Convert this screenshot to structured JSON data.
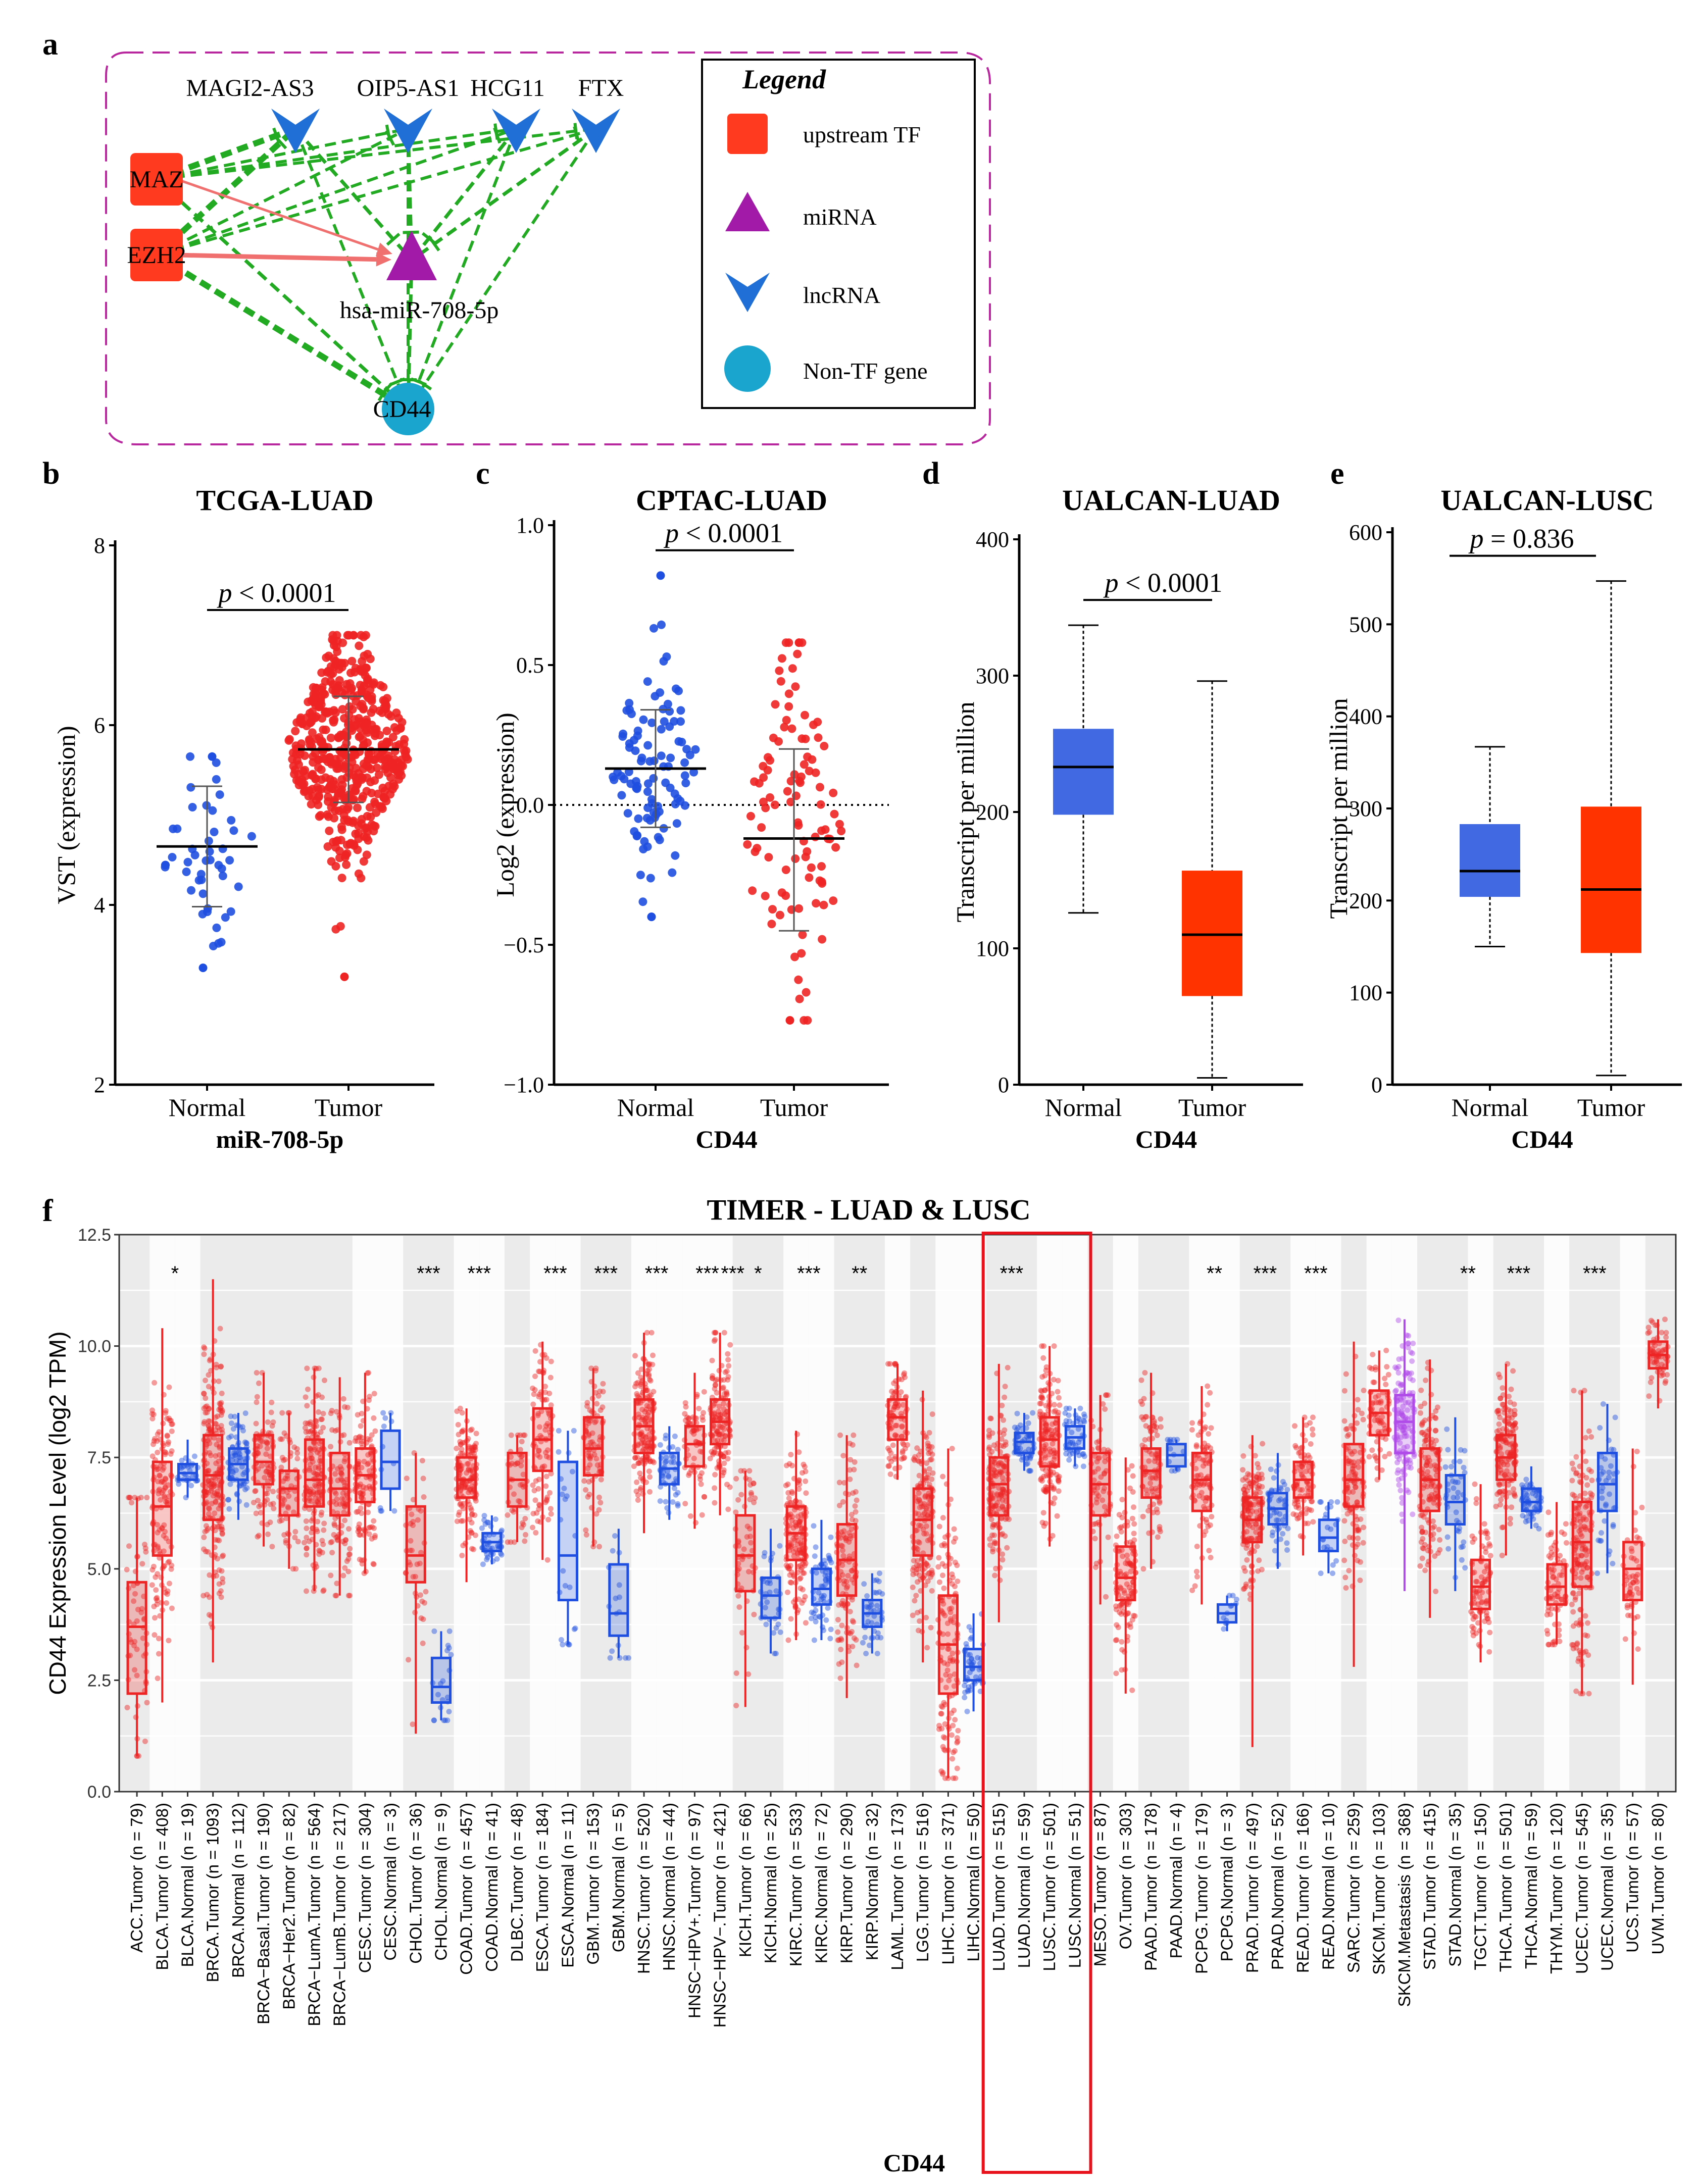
{
  "panel_labels": {
    "a": "a",
    "b": "b",
    "c": "c",
    "d": "d",
    "e": "e",
    "f": "f"
  },
  "colors": {
    "normal_blue": "#1f4fe0",
    "tumor_red": "#ee2323",
    "box_blue": "#4169e1",
    "box_red": "#ff3300",
    "tf_orange": "#ff3a1e",
    "mirna_purple": "#a21ba8",
    "lncrna_blue": "#1f6fd6",
    "gene_cyan": "#1aa5cf",
    "edge_green": "#22aa22",
    "edge_pink": "#f07070",
    "frame_magenta": "#b8279e",
    "metastasis_purple": "#b04ae8",
    "highlight_red": "#e8121c"
  },
  "network": {
    "nodes": {
      "tf": [
        "MAZ",
        "EZH2"
      ],
      "lncrna": [
        "MAGI2-AS3",
        "OIP5-AS1",
        "HCG11",
        "FTX"
      ],
      "mirna": "hsa-miR-708-5p",
      "gene": "CD44"
    },
    "legend": {
      "title": "Legend",
      "items": [
        {
          "label": "upstream TF",
          "shape": "square-icon"
        },
        {
          "label": "miRNA",
          "shape": "triangle-icon"
        },
        {
          "label": "lncRNA",
          "shape": "chevron-down-icon"
        },
        {
          "label": "Non-TF gene",
          "shape": "circle-icon"
        }
      ]
    }
  },
  "chart_data": [
    {
      "id": "b",
      "type": "scatter",
      "title": "TCGA-LUAD",
      "xlabel": "miR-708-5p",
      "ylabel": "VST (expression)",
      "categories": [
        "Normal",
        "Tumor"
      ],
      "ylim": [
        2,
        8
      ],
      "yticks": [
        "2",
        "4",
        "6",
        "8"
      ],
      "pvalue": "p < 0.0001",
      "series": [
        {
          "name": "Normal",
          "mean": 4.65,
          "sd_low": 3.98,
          "sd_high": 5.32,
          "min": 3.3,
          "max": 5.65,
          "n": 46
        },
        {
          "name": "Tumor",
          "mean": 5.73,
          "sd_low": 5.14,
          "sd_high": 6.32,
          "min": 3.2,
          "max": 7.0,
          "n": 520
        }
      ]
    },
    {
      "id": "c",
      "type": "scatter",
      "title": "CPTAC-LUAD",
      "xlabel": "CD44",
      "ylabel": "Log2 (expression)",
      "categories": [
        "Normal",
        "Tumor"
      ],
      "ylim": [
        -1.0,
        1.0
      ],
      "yticks": [
        "−1.0",
        "−0.5",
        "0.0",
        "0.5",
        "1.0"
      ],
      "reference_line": 0.0,
      "pvalue": "p < 0.0001",
      "series": [
        {
          "name": "Normal",
          "mean": 0.13,
          "sd_low": -0.08,
          "sd_high": 0.34,
          "min": -0.4,
          "max": 0.82,
          "n": 100
        },
        {
          "name": "Tumor",
          "mean": -0.12,
          "sd_low": -0.45,
          "sd_high": 0.2,
          "min": -0.77,
          "max": 0.58,
          "n": 100
        }
      ]
    },
    {
      "id": "d",
      "type": "box",
      "title": "UALCAN-LUAD",
      "xlabel": "CD44",
      "ylabel": "Transcript per million",
      "categories": [
        "Normal",
        "Tumor"
      ],
      "ylim": [
        0,
        400
      ],
      "yticks": [
        "0",
        "100",
        "200",
        "300",
        "400"
      ],
      "pvalue": "p < 0.0001",
      "series": [
        {
          "name": "Normal",
          "min": 126,
          "q1": 198,
          "median": 233,
          "q3": 261,
          "max": 337
        },
        {
          "name": "Tumor",
          "min": 5,
          "q1": 65,
          "median": 110,
          "q3": 157,
          "max": 296
        }
      ]
    },
    {
      "id": "e",
      "type": "box",
      "title": "UALCAN-LUSC",
      "xlabel": "CD44",
      "ylabel": "Transcript per million",
      "categories": [
        "Normal",
        "Tumor"
      ],
      "ylim": [
        0,
        600
      ],
      "yticks": [
        "0",
        "100",
        "200",
        "300",
        "400",
        "500",
        "600"
      ],
      "pvalue": "p = 0.836",
      "series": [
        {
          "name": "Normal",
          "min": 150,
          "q1": 204,
          "median": 232,
          "q3": 283,
          "max": 367
        },
        {
          "name": "Tumor",
          "min": 10,
          "q1": 143,
          "median": 212,
          "q3": 302,
          "max": 547
        }
      ]
    },
    {
      "id": "f",
      "type": "box",
      "title": "TIMER - LUAD & LUSC",
      "xlabel": "CD44",
      "ylabel": "CD44 Expression Level (log2 TPM)",
      "ylim": [
        0,
        12.5
      ],
      "yticks": [
        "0.0",
        "2.5",
        "5.0",
        "7.5",
        "10.0",
        "12.5"
      ],
      "highlight": [
        "LUAD.Tumor (n = 515)",
        "LUAD.Normal (n = 59)",
        "LUSC.Tumor (n = 501)",
        "LUSC.Normal (n = 51)"
      ],
      "groups": [
        {
          "label": "ACC.Tumor (n = 79)",
          "kind": "tumor",
          "q1": 2.2,
          "median": 3.7,
          "q3": 4.7,
          "min": 0.8,
          "max": 6.6,
          "sig": ""
        },
        {
          "label": "BLCA.Tumor (n = 408)",
          "kind": "tumor",
          "q1": 5.3,
          "median": 6.4,
          "q3": 7.4,
          "min": 2.0,
          "max": 10.4,
          "sig": "*"
        },
        {
          "label": "BLCA.Normal (n = 19)",
          "kind": "normal",
          "q1": 7.0,
          "median": 7.15,
          "q3": 7.35,
          "min": 6.6,
          "max": 7.9,
          "sig": ""
        },
        {
          "label": "BRCA.Tumor (n = 1093)",
          "kind": "tumor",
          "q1": 6.1,
          "median": 7.1,
          "q3": 8.0,
          "min": 2.9,
          "max": 11.5,
          "sig": ""
        },
        {
          "label": "BRCA.Normal (n = 112)",
          "kind": "normal",
          "q1": 7.0,
          "median": 7.35,
          "q3": 7.7,
          "min": 6.1,
          "max": 8.5,
          "sig": ""
        },
        {
          "label": "BRCA−Basal.Tumor (n = 190)",
          "kind": "tumor",
          "q1": 6.9,
          "median": 7.4,
          "q3": 8.0,
          "min": 5.5,
          "max": 9.4,
          "sig": ""
        },
        {
          "label": "BRCA−Her2.Tumor (n = 82)",
          "kind": "tumor",
          "q1": 6.2,
          "median": 6.8,
          "q3": 7.2,
          "min": 5.0,
          "max": 8.5,
          "sig": ""
        },
        {
          "label": "BRCA−LumA.Tumor (n = 564)",
          "kind": "tumor",
          "q1": 6.4,
          "median": 7.0,
          "q3": 7.9,
          "min": 4.5,
          "max": 9.5,
          "sig": ""
        },
        {
          "label": "BRCA−LumB.Tumor (n = 217)",
          "kind": "tumor",
          "q1": 6.2,
          "median": 6.8,
          "q3": 7.6,
          "min": 4.4,
          "max": 9.3,
          "sig": ""
        },
        {
          "label": "CESC.Tumor (n = 304)",
          "kind": "tumor",
          "q1": 6.5,
          "median": 7.1,
          "q3": 7.7,
          "min": 4.9,
          "max": 9.4,
          "sig": ""
        },
        {
          "label": "CESC.Normal (n = 3)",
          "kind": "normal",
          "q1": 6.8,
          "median": 7.4,
          "q3": 8.1,
          "min": 6.3,
          "max": 8.5,
          "sig": ""
        },
        {
          "label": "CHOL.Tumor (n = 36)",
          "kind": "tumor",
          "q1": 4.7,
          "median": 5.3,
          "q3": 6.4,
          "min": 1.3,
          "max": 7.6,
          "sig": "***"
        },
        {
          "label": "CHOL.Normal (n = 9)",
          "kind": "normal",
          "q1": 2.0,
          "median": 2.35,
          "q3": 3.0,
          "min": 1.6,
          "max": 3.6,
          "sig": ""
        },
        {
          "label": "COAD.Tumor (n = 457)",
          "kind": "tumor",
          "q1": 6.6,
          "median": 7.0,
          "q3": 7.5,
          "min": 4.7,
          "max": 8.6,
          "sig": "***"
        },
        {
          "label": "COAD.Normal (n = 41)",
          "kind": "normal",
          "q1": 5.4,
          "median": 5.6,
          "q3": 5.8,
          "min": 5.1,
          "max": 6.2,
          "sig": ""
        },
        {
          "label": "DLBC.Tumor (n = 48)",
          "kind": "tumor",
          "q1": 6.4,
          "median": 7.0,
          "q3": 7.6,
          "min": 5.6,
          "max": 8.0,
          "sig": ""
        },
        {
          "label": "ESCA.Tumor (n = 184)",
          "kind": "tumor",
          "q1": 7.2,
          "median": 7.9,
          "q3": 8.6,
          "min": 5.2,
          "max": 10.1,
          "sig": "***"
        },
        {
          "label": "ESCA.Normal (n = 11)",
          "kind": "normal",
          "q1": 4.3,
          "median": 5.3,
          "q3": 7.4,
          "min": 3.3,
          "max": 8.1,
          "sig": ""
        },
        {
          "label": "GBM.Tumor (n = 153)",
          "kind": "tumor",
          "q1": 7.1,
          "median": 7.7,
          "q3": 8.4,
          "min": 5.5,
          "max": 9.5,
          "sig": "***"
        },
        {
          "label": "GBM.Normal (n = 5)",
          "kind": "normal",
          "q1": 3.5,
          "median": 4.0,
          "q3": 5.1,
          "min": 3.0,
          "max": 5.9,
          "sig": ""
        },
        {
          "label": "HNSC.Tumor (n = 520)",
          "kind": "tumor",
          "q1": 7.6,
          "median": 8.2,
          "q3": 8.8,
          "min": 5.8,
          "max": 10.3,
          "sig": "***"
        },
        {
          "label": "HNSC.Normal (n = 44)",
          "kind": "normal",
          "q1": 6.9,
          "median": 7.25,
          "q3": 7.6,
          "min": 6.1,
          "max": 8.2,
          "sig": ""
        },
        {
          "label": "HNSC−HPV+.Tumor (n = 97)",
          "kind": "tumor",
          "q1": 7.3,
          "median": 7.8,
          "q3": 8.2,
          "min": 5.9,
          "max": 9.4,
          "sig": "***"
        },
        {
          "label": "HNSC−HPV−.Tumor (n = 421)",
          "kind": "tumor",
          "q1": 7.8,
          "median": 8.3,
          "q3": 8.8,
          "min": 6.2,
          "max": 10.3,
          "sig": "***"
        },
        {
          "label": "KICH.Tumor (n = 66)",
          "kind": "tumor",
          "q1": 4.5,
          "median": 5.3,
          "q3": 6.2,
          "min": 1.9,
          "max": 7.2,
          "sig": "*"
        },
        {
          "label": "KICH.Normal (n = 25)",
          "kind": "normal",
          "q1": 3.9,
          "median": 4.4,
          "q3": 4.8,
          "min": 3.1,
          "max": 5.9,
          "sig": ""
        },
        {
          "label": "KIRC.Tumor (n = 533)",
          "kind": "tumor",
          "q1": 5.2,
          "median": 5.8,
          "q3": 6.4,
          "min": 3.4,
          "max": 8.1,
          "sig": "***"
        },
        {
          "label": "KIRC.Normal (n = 72)",
          "kind": "normal",
          "q1": 4.2,
          "median": 4.55,
          "q3": 5.0,
          "min": 3.4,
          "max": 6.1,
          "sig": ""
        },
        {
          "label": "KIRP.Tumor (n = 290)",
          "kind": "tumor",
          "q1": 4.4,
          "median": 5.2,
          "q3": 6.0,
          "min": 2.1,
          "max": 8.0,
          "sig": "**"
        },
        {
          "label": "KIRP.Normal (n = 32)",
          "kind": "normal",
          "q1": 3.7,
          "median": 4.0,
          "q3": 4.3,
          "min": 3.1,
          "max": 4.9,
          "sig": ""
        },
        {
          "label": "LAML.Tumor (n = 173)",
          "kind": "tumor",
          "q1": 7.9,
          "median": 8.4,
          "q3": 8.8,
          "min": 7.0,
          "max": 9.6,
          "sig": ""
        },
        {
          "label": "LGG.Tumor (n = 516)",
          "kind": "tumor",
          "q1": 5.3,
          "median": 6.1,
          "q3": 6.8,
          "min": 2.9,
          "max": 9.0,
          "sig": ""
        },
        {
          "label": "LIHC.Tumor (n = 371)",
          "kind": "tumor",
          "q1": 2.2,
          "median": 3.3,
          "q3": 4.4,
          "min": 0.3,
          "max": 7.7,
          "sig": ""
        },
        {
          "label": "LIHC.Normal (n = 50)",
          "kind": "normal",
          "q1": 2.5,
          "median": 2.8,
          "q3": 3.2,
          "min": 1.8,
          "max": 4.0,
          "sig": ""
        },
        {
          "label": "LUAD.Tumor (n = 515)",
          "kind": "tumor",
          "q1": 6.2,
          "median": 6.9,
          "q3": 7.5,
          "min": 3.8,
          "max": 9.6,
          "sig": "***"
        },
        {
          "label": "LUAD.Normal (n = 59)",
          "kind": "normal",
          "q1": 7.6,
          "median": 7.85,
          "q3": 8.05,
          "min": 7.2,
          "max": 8.5,
          "sig": ""
        },
        {
          "label": "LUSC.Tumor (n = 501)",
          "kind": "tumor",
          "q1": 7.3,
          "median": 7.9,
          "q3": 8.4,
          "min": 5.5,
          "max": 10.0,
          "sig": ""
        },
        {
          "label": "LUSC.Normal (n = 51)",
          "kind": "normal",
          "q1": 7.7,
          "median": 7.95,
          "q3": 8.2,
          "min": 7.3,
          "max": 8.6,
          "sig": ""
        },
        {
          "label": "MESO.Tumor (n = 87)",
          "kind": "tumor",
          "q1": 6.2,
          "median": 6.9,
          "q3": 7.6,
          "min": 4.2,
          "max": 8.9,
          "sig": ""
        },
        {
          "label": "OV.Tumor (n = 303)",
          "kind": "tumor",
          "q1": 4.3,
          "median": 4.8,
          "q3": 5.5,
          "min": 2.2,
          "max": 7.5,
          "sig": ""
        },
        {
          "label": "PAAD.Tumor (n = 178)",
          "kind": "tumor",
          "q1": 6.6,
          "median": 7.2,
          "q3": 7.7,
          "min": 5.0,
          "max": 9.4,
          "sig": ""
        },
        {
          "label": "PAAD.Normal (n = 4)",
          "kind": "normal",
          "q1": 7.3,
          "median": 7.55,
          "q3": 7.8,
          "min": 7.2,
          "max": 7.9,
          "sig": ""
        },
        {
          "label": "PCPG.Tumor (n = 179)",
          "kind": "tumor",
          "q1": 6.3,
          "median": 7.0,
          "q3": 7.6,
          "min": 4.2,
          "max": 9.1,
          "sig": "**"
        },
        {
          "label": "PCPG.Normal (n = 3)",
          "kind": "normal",
          "q1": 3.8,
          "median": 4.0,
          "q3": 4.2,
          "min": 3.6,
          "max": 4.4,
          "sig": ""
        },
        {
          "label": "PRAD.Tumor (n = 497)",
          "kind": "tumor",
          "q1": 5.6,
          "median": 6.1,
          "q3": 6.6,
          "min": 1.0,
          "max": 8.0,
          "sig": "***"
        },
        {
          "label": "PRAD.Normal (n = 52)",
          "kind": "normal",
          "q1": 6.0,
          "median": 6.35,
          "q3": 6.7,
          "min": 5.0,
          "max": 7.6,
          "sig": ""
        },
        {
          "label": "READ.Tumor (n = 166)",
          "kind": "tumor",
          "q1": 6.6,
          "median": 7.0,
          "q3": 7.4,
          "min": 5.3,
          "max": 8.4,
          "sig": "***"
        },
        {
          "label": "READ.Normal (n = 10)",
          "kind": "normal",
          "q1": 5.4,
          "median": 5.7,
          "q3": 6.1,
          "min": 4.9,
          "max": 6.5,
          "sig": ""
        },
        {
          "label": "SARC.Tumor (n = 259)",
          "kind": "tumor",
          "q1": 6.4,
          "median": 7.0,
          "q3": 7.8,
          "min": 2.8,
          "max": 10.1,
          "sig": ""
        },
        {
          "label": "SKCM.Tumor (n = 103)",
          "kind": "tumor",
          "q1": 8.0,
          "median": 8.5,
          "q3": 9.0,
          "min": 7.0,
          "max": 9.9,
          "sig": ""
        },
        {
          "label": "SKCM.Metastasis (n = 368)",
          "kind": "metastasis",
          "q1": 7.6,
          "median": 8.3,
          "q3": 8.9,
          "min": 4.5,
          "max": 10.6,
          "sig": ""
        },
        {
          "label": "STAD.Tumor (n = 415)",
          "kind": "tumor",
          "q1": 6.3,
          "median": 7.0,
          "q3": 7.7,
          "min": 3.9,
          "max": 9.7,
          "sig": ""
        },
        {
          "label": "STAD.Normal (n = 35)",
          "kind": "normal",
          "q1": 6.0,
          "median": 6.5,
          "q3": 7.1,
          "min": 4.5,
          "max": 8.4,
          "sig": "**"
        },
        {
          "label": "TGCT.Tumor (n = 150)",
          "kind": "tumor",
          "q1": 4.1,
          "median": 4.6,
          "q3": 5.2,
          "min": 2.9,
          "max": 6.9,
          "sig": ""
        },
        {
          "label": "THCA.Tumor (n = 501)",
          "kind": "tumor",
          "q1": 7.0,
          "median": 7.5,
          "q3": 8.0,
          "min": 5.3,
          "max": 9.6,
          "sig": "***"
        },
        {
          "label": "THCA.Normal (n = 59)",
          "kind": "normal",
          "q1": 6.3,
          "median": 6.5,
          "q3": 6.8,
          "min": 5.9,
          "max": 7.3,
          "sig": ""
        },
        {
          "label": "THYM.Tumor (n = 120)",
          "kind": "tumor",
          "q1": 4.2,
          "median": 4.6,
          "q3": 5.1,
          "min": 3.3,
          "max": 6.5,
          "sig": ""
        },
        {
          "label": "UCEC.Tumor (n = 545)",
          "kind": "tumor",
          "q1": 4.6,
          "median": 5.6,
          "q3": 6.5,
          "min": 2.2,
          "max": 9.0,
          "sig": "***"
        },
        {
          "label": "UCEC.Normal (n = 35)",
          "kind": "normal",
          "q1": 6.3,
          "median": 6.9,
          "q3": 7.6,
          "min": 4.9,
          "max": 8.7,
          "sig": ""
        },
        {
          "label": "UCS.Tumor (n = 57)",
          "kind": "tumor",
          "q1": 4.3,
          "median": 5.0,
          "q3": 5.6,
          "min": 2.4,
          "max": 7.7,
          "sig": ""
        },
        {
          "label": "UVM.Tumor (n = 80)",
          "kind": "tumor",
          "q1": 9.5,
          "median": 9.8,
          "q3": 10.1,
          "min": 8.6,
          "max": 10.6,
          "sig": ""
        }
      ]
    }
  ]
}
